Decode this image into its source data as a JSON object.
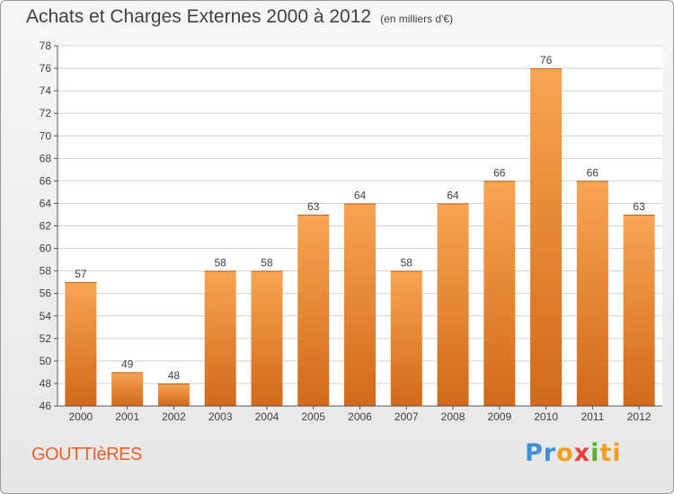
{
  "header": {
    "title": "Achats et Charges Externes 2000 à 2012",
    "subtitle": "(en milliers d'€)"
  },
  "footer": {
    "commune": "GOUTTIèRES",
    "logo": [
      "Pr",
      "o",
      "x",
      "i",
      "ti"
    ]
  },
  "colors": {
    "bar_top": "#f7a553",
    "bar_bottom": "#d2691a",
    "grid": "#d0d0d0",
    "axis": "#555555",
    "text": "#404040"
  },
  "chart_data": {
    "type": "bar",
    "categories": [
      "2000",
      "2001",
      "2002",
      "2003",
      "2004",
      "2005",
      "2006",
      "2007",
      "2008",
      "2009",
      "2010",
      "2011",
      "2012"
    ],
    "values": [
      57,
      49,
      48,
      58,
      58,
      63,
      64,
      58,
      64,
      66,
      76,
      66,
      63
    ],
    "ylim": [
      46,
      78
    ],
    "yticks": [
      46,
      48,
      50,
      52,
      54,
      56,
      58,
      60,
      62,
      64,
      66,
      68,
      70,
      72,
      74,
      76,
      78
    ],
    "grid": true,
    "data_labels": true
  }
}
